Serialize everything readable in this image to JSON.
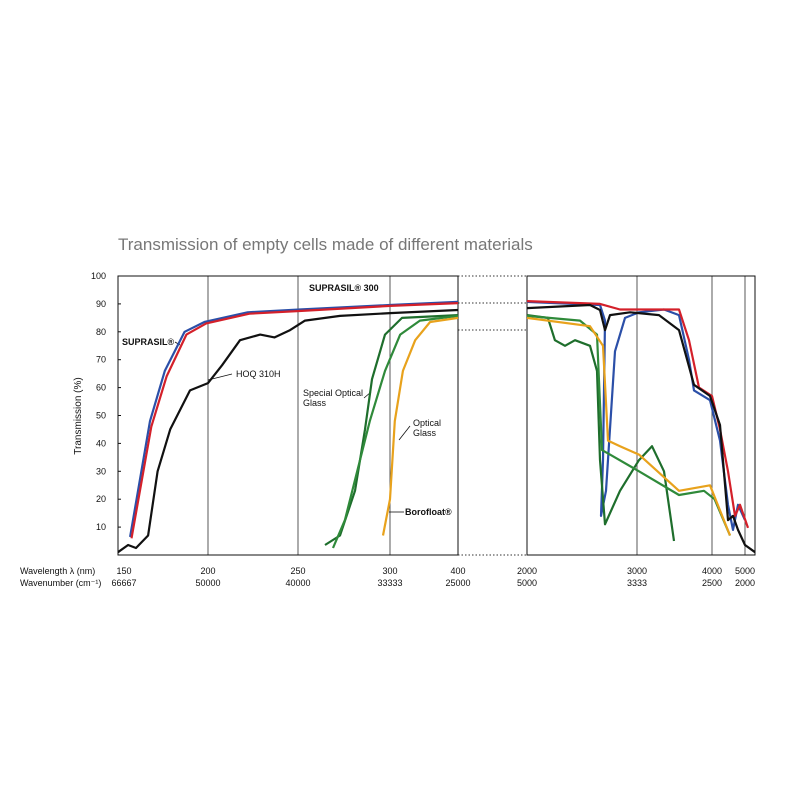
{
  "chart_data": [
    {
      "type": "line",
      "title": "Transmission of empty cells made of different materials",
      "ylabel": "Transmission (%)",
      "xlabel": "Wavelength  λ (nm)",
      "x2label": "Wavenumber (cm⁻¹)",
      "xlim": [
        150,
        400
      ],
      "xticks": [
        150,
        200,
        250,
        300,
        400
      ],
      "wavenumber_ticks": [
        66667,
        50000,
        40000,
        33333,
        25000
      ],
      "ylim": [
        0,
        100
      ],
      "yticks": [
        10,
        20,
        30,
        40,
        50,
        60,
        70,
        80,
        90,
        100
      ],
      "grid": true,
      "series": [
        {
          "name": "SUPRASIL®",
          "color": "#2b4fa8",
          "x": [
            156.7,
            167.8,
            176,
            187,
            198,
            222,
            251,
            300,
            400
          ],
          "values": [
            6.5,
            48,
            66,
            80,
            83.5,
            87,
            88,
            89.6,
            90.7
          ]
        },
        {
          "name": "SUPRASIL® 300",
          "color": "#d4202a",
          "x": [
            157.5,
            168.5,
            177,
            188,
            199,
            223,
            252,
            300,
            400
          ],
          "values": [
            6,
            46,
            64,
            79,
            83,
            86.5,
            87.5,
            89.3,
            90.3
          ]
        },
        {
          "name": "HOQ 310H",
          "color": "#111111",
          "x": [
            150,
            155.6,
            160,
            166.7,
            172,
            179,
            190,
            200,
            207.8,
            217.8,
            229,
            237,
            245.6,
            253.8,
            272.8,
            300,
            400
          ],
          "values": [
            1,
            3.6,
            2.5,
            7,
            30,
            45,
            59,
            61.6,
            68,
            77,
            79,
            78,
            80.6,
            84,
            85.7,
            86.7,
            87.8
          ]
        },
        {
          "name": "Special Optical Glass",
          "color": "#1e6e2c",
          "x": [
            264.7,
            272.8,
            281,
            286.4,
            290.2,
            297.3,
            317.6,
            400
          ],
          "values": [
            3.6,
            7,
            23,
            45,
            63,
            79,
            85,
            86
          ]
        },
        {
          "name": "Optical Glass",
          "color": "#2f8a3a",
          "x": [
            269,
            275.5,
            283.7,
            289,
            297.3,
            315,
            344,
            400
          ],
          "values": [
            2.5,
            12.5,
            34,
            48,
            66,
            79,
            84,
            85.7
          ]
        },
        {
          "name": "Borofloat®",
          "color": "#e8a21c",
          "x": [
            296.2,
            300,
            307,
            319,
            337,
            359,
            400
          ],
          "values": [
            7,
            20,
            48,
            66,
            77,
            83.5,
            85
          ]
        }
      ]
    },
    {
      "type": "line",
      "xlim": [
        2000,
        5300
      ],
      "xticks": [
        2000,
        3000,
        4000,
        5000
      ],
      "wavenumber_ticks": [
        5000,
        3333,
        2500,
        2000
      ],
      "ylim": [
        0,
        100
      ],
      "grid": true,
      "series": [
        {
          "color": "#2b4fa8",
          "x": [
            2000,
            2664,
            2709,
            2691,
            2673,
            2718,
            2800,
            2891,
            3027,
            3360,
            3560,
            3693,
            3760,
            3973,
            4242,
            4485,
            4636,
            4787,
            5000
          ],
          "values": [
            90.7,
            89.6,
            84,
            34,
            14,
            23,
            73,
            85,
            87,
            88,
            86,
            70,
            59,
            55.5,
            41,
            18,
            9,
            18,
            12.5
          ]
        },
        {
          "color": "#d4202a",
          "x": [
            2000,
            2664,
            2845,
            3560,
            3693,
            3827,
            4000,
            4242,
            4485,
            4697,
            4848,
            5090
          ],
          "values": [
            91,
            90,
            88,
            88,
            77,
            60,
            57,
            45,
            30,
            14,
            18,
            9.7
          ]
        },
        {
          "color": "#111111",
          "x": [
            2000,
            2573,
            2664,
            2709,
            2755,
            2936,
            3293,
            3560,
            3760,
            3973,
            4242,
            4485,
            4636,
            4787,
            5000,
            5300
          ],
          "values": [
            88.5,
            89.6,
            87.8,
            80.6,
            86,
            87,
            86,
            80.6,
            61,
            57,
            46.6,
            12.5,
            14,
            9,
            3.6,
            1
          ]
        },
        {
          "color": "#1e6e2c",
          "x": [
            2000,
            2190,
            2254,
            2345,
            2436,
            2573,
            2636,
            2664,
            2709,
            2845,
            3027,
            3200,
            3360,
            3493
          ],
          "values": [
            86,
            85,
            77,
            75,
            77,
            75,
            66,
            34,
            11,
            23,
            34,
            39,
            30,
            5
          ]
        },
        {
          "color": "#2f8a3a",
          "x": [
            2000,
            2482,
            2636,
            2682,
            2755,
            3027,
            3560,
            3893,
            4080,
            4545
          ],
          "values": [
            85.7,
            84,
            79,
            37.6,
            36,
            30,
            21.5,
            23,
            20,
            7
          ]
        },
        {
          "color": "#e8a21c",
          "x": [
            2000,
            2573,
            2691,
            2736,
            2845,
            3027,
            3560,
            3973,
            4545
          ],
          "values": [
            85,
            82,
            75,
            41,
            39,
            36,
            23,
            25,
            7
          ]
        }
      ]
    }
  ]
}
